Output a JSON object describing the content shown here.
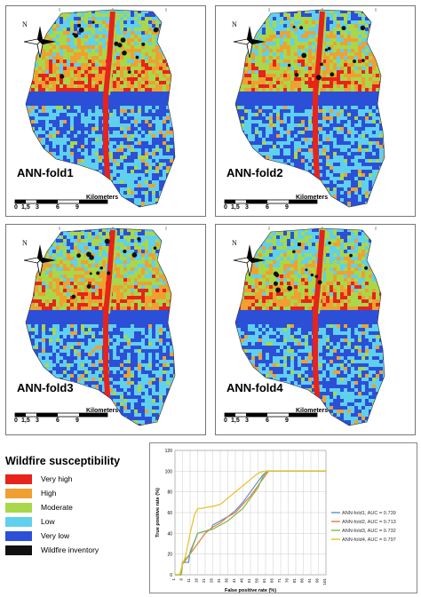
{
  "maps": [
    {
      "id": "fold1",
      "label": "ANN-fold1"
    },
    {
      "id": "fold2",
      "label": "ANN-fold2"
    },
    {
      "id": "fold3",
      "label": "ANN-fold3"
    },
    {
      "id": "fold4",
      "label": "ANN-fold4"
    }
  ],
  "north_letter": "N",
  "scale_bar": {
    "unit": "Kilometers",
    "ticks": [
      "0",
      "1,5",
      "3",
      "6",
      "9"
    ]
  },
  "legend": {
    "title": "Wildfire susceptibility",
    "items": [
      {
        "label": "Very high",
        "color": "#e8231a"
      },
      {
        "label": "High",
        "color": "#f0a030"
      },
      {
        "label": "Moderate",
        "color": "#a8d84a"
      },
      {
        "label": "Low",
        "color": "#5fd0ee"
      },
      {
        "label": "Very low",
        "color": "#2c4fd8"
      },
      {
        "label": "Wildfire inventory",
        "color": "#111111"
      }
    ]
  },
  "chart_data": {
    "type": "line",
    "xlabel": "False positive rate (%)",
    "ylabel": "True positive rate (%)",
    "xlim": [
      1,
      101
    ],
    "ylim": [
      0,
      120
    ],
    "xticks": [
      "1",
      "6",
      "11",
      "16",
      "21",
      "26",
      "31",
      "36",
      "41",
      "46",
      "51",
      "56",
      "61",
      "66",
      "71",
      "76",
      "81",
      "86",
      "91",
      "96",
      "101"
    ],
    "yticks": [
      "0",
      "20",
      "40",
      "60",
      "80",
      "100",
      "120"
    ],
    "legend_position": "right",
    "series": [
      {
        "name": "ANN-fold1, AUC = 0.739",
        "color": "#5b8fd0",
        "x": [
          1,
          5,
          6,
          10,
          11,
          16,
          21,
          25,
          26,
          31,
          36,
          41,
          46,
          51,
          55,
          59,
          62,
          101
        ],
        "y": [
          0,
          0,
          12,
          12,
          22,
          40,
          42,
          44,
          48,
          52,
          56,
          62,
          70,
          80,
          88,
          96,
          100,
          100
        ]
      },
      {
        "name": "ANN-fold2, AUC = 0.713",
        "color": "#e07a3a",
        "x": [
          1,
          5,
          6,
          11,
          16,
          21,
          26,
          31,
          36,
          41,
          46,
          51,
          56,
          60,
          63,
          101
        ],
        "y": [
          0,
          0,
          10,
          20,
          30,
          40,
          46,
          50,
          56,
          60,
          68,
          76,
          86,
          94,
          100,
          100
        ]
      },
      {
        "name": "ANN-fold3, AUC = 0.732",
        "color": "#7cb84a",
        "x": [
          1,
          5,
          6,
          11,
          16,
          21,
          26,
          31,
          36,
          41,
          46,
          51,
          56,
          59,
          62,
          101
        ],
        "y": [
          0,
          0,
          12,
          20,
          40,
          42,
          44,
          48,
          52,
          58,
          64,
          74,
          84,
          94,
          100,
          100
        ]
      },
      {
        "name": "ANN-fold4, AUC = 0.797",
        "color": "#e8c020",
        "x": [
          1,
          4,
          6,
          8,
          11,
          14,
          16,
          19,
          21,
          26,
          31,
          36,
          41,
          46,
          51,
          56,
          60,
          101
        ],
        "y": [
          0,
          0,
          10,
          18,
          40,
          58,
          64,
          64,
          65,
          66,
          68,
          74,
          80,
          86,
          92,
          98,
          100,
          100
        ]
      }
    ]
  }
}
